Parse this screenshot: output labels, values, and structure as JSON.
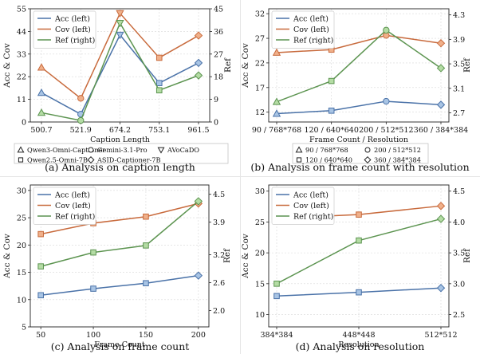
{
  "colors": {
    "acc": "#4a72a8",
    "cov": "#c86a3c",
    "ref": "#5c9450",
    "fill_acc": "#a8c4e4",
    "fill_cov": "#f0b08a",
    "fill_ref": "#b4dca4"
  },
  "panels": [
    {
      "caption": "(a) Analysis on caption length"
    },
    {
      "caption": "(b) Analysis on frame count with resolution"
    },
    {
      "caption": "(c) Analysis on frame count"
    },
    {
      "caption": "(d) Analysis on resolution"
    }
  ],
  "chart_data": [
    {
      "type": "line",
      "xlabel": "Caption Length",
      "ylabel": "Acc & Cov",
      "y2label": "Ref",
      "categories": [
        "500.7",
        "521.9",
        "674.2",
        "753.1",
        "961.5"
      ],
      "ylim": [
        0,
        55
      ],
      "yticks": [
        0,
        11,
        22,
        33,
        44,
        55
      ],
      "y2lim": [
        0,
        45
      ],
      "y2ticks": [
        0,
        9,
        18,
        27,
        36,
        45
      ],
      "grid": true,
      "legend_position": "top-left",
      "markers": [
        "triangle",
        "circle",
        "triangle-down",
        "square",
        "diamond"
      ],
      "series": [
        {
          "name": "Acc (left)",
          "axis": "left",
          "values": [
            14.2,
            3.8,
            42.3,
            18.9,
            28.7
          ]
        },
        {
          "name": "Cov (left)",
          "axis": "left",
          "values": [
            26.5,
            11.5,
            52.8,
            31.2,
            42.0
          ]
        },
        {
          "name": "Ref (right)",
          "axis": "right",
          "values": [
            3.7,
            0.6,
            39.3,
            12.6,
            18.5
          ]
        }
      ],
      "marker_legend": [
        "Qwen3-Omni-Captioner",
        "Gemini-3.1-Pro",
        "AVoCaDO",
        "Qwen2.5-Omni-7B",
        "ASID-Captioner-7B"
      ]
    },
    {
      "type": "line",
      "xlabel": "Frame Count / Resolution",
      "ylabel": "Acc & Cov",
      "y2label": "Ref",
      "categories": [
        "90 / 768*768",
        "120 / 640*640",
        "200 / 512*512",
        "360 / 384*384"
      ],
      "ylim": [
        10,
        33
      ],
      "yticks": [
        12,
        17,
        22,
        27,
        32
      ],
      "y2lim": [
        2.55,
        4.4
      ],
      "y2ticks": [
        2.7,
        3.1,
        3.5,
        3.9,
        4.3
      ],
      "grid": true,
      "legend_position": "top-left",
      "markers": [
        "triangle",
        "square",
        "circle",
        "diamond"
      ],
      "series": [
        {
          "name": "Acc (left)",
          "axis": "left",
          "values": [
            11.7,
            12.3,
            14.2,
            13.5
          ]
        },
        {
          "name": "Cov (left)",
          "axis": "left",
          "values": [
            24.1,
            24.7,
            27.6,
            26.0
          ]
        },
        {
          "name": "Ref (right)",
          "axis": "right",
          "values": [
            2.88,
            3.22,
            4.05,
            3.43
          ]
        }
      ],
      "marker_legend": [
        "90 / 768*768",
        "200 / 512*512",
        "120 / 640*640",
        "360 / 384*384"
      ]
    },
    {
      "type": "line",
      "xlabel": "Frame Count",
      "ylabel": "Acc & Cov",
      "y2label": "Ref",
      "x": [
        50,
        100,
        150,
        200
      ],
      "xlim": [
        40,
        210
      ],
      "xticks": [
        "50",
        "100",
        "150",
        "200"
      ],
      "ylim": [
        5,
        31
      ],
      "yticks": [
        5,
        10,
        15,
        20,
        25,
        30
      ],
      "y2lim": [
        1.65,
        4.7
      ],
      "y2ticks": [
        "2.0",
        "2.6",
        "3.2",
        "3.9",
        "4.5"
      ],
      "grid": true,
      "legend_position": "top-left",
      "series": [
        {
          "name": "Acc (left)",
          "axis": "left",
          "values": [
            10.8,
            12.0,
            13.0,
            14.4
          ]
        },
        {
          "name": "Cov (left)",
          "axis": "left",
          "values": [
            22.0,
            24.0,
            25.2,
            27.6
          ]
        },
        {
          "name": "Ref (right)",
          "axis": "right",
          "values": [
            2.95,
            3.25,
            3.4,
            4.35
          ]
        }
      ]
    },
    {
      "type": "line",
      "xlabel": "Resolution",
      "ylabel": "Acc & Cov",
      "y2label": "Ref",
      "categories": [
        "384*384",
        "448*448",
        "512*512"
      ],
      "ylim": [
        8,
        31
      ],
      "yticks": [
        10,
        15,
        20,
        25,
        30
      ],
      "y2lim": [
        2.3,
        4.6
      ],
      "y2ticks": [
        "2.5",
        "3.0",
        "3.5",
        "4.0",
        "4.5"
      ],
      "grid": true,
      "legend_position": "top-left",
      "series": [
        {
          "name": "Acc (left)",
          "axis": "left",
          "values": [
            13.0,
            13.6,
            14.3
          ]
        },
        {
          "name": "Cov (left)",
          "axis": "left",
          "values": [
            25.6,
            26.2,
            27.6
          ]
        },
        {
          "name": "Ref (right)",
          "axis": "right",
          "values": [
            3.0,
            3.7,
            4.05
          ]
        }
      ]
    }
  ]
}
